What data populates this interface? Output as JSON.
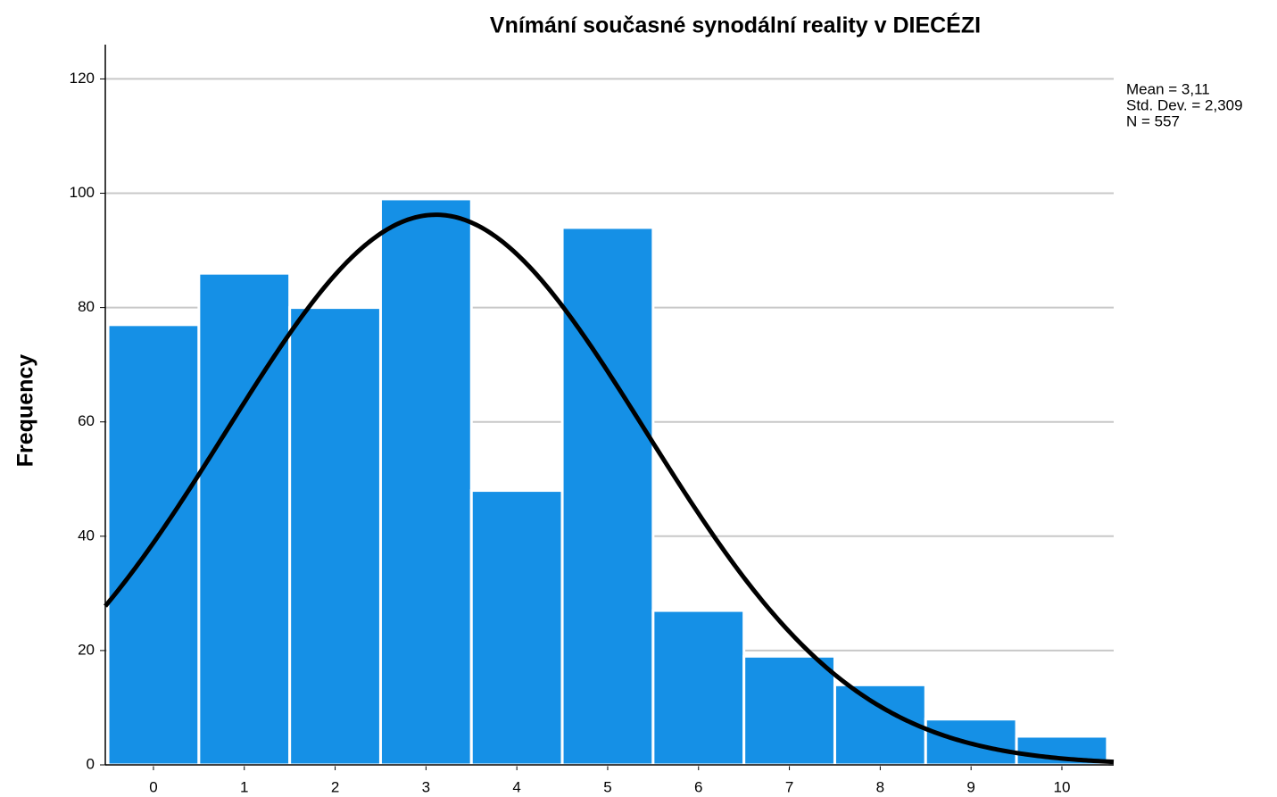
{
  "chart_data": {
    "type": "histogram",
    "title": "Vnímání současné synodální reality v DIECÉZI",
    "y_label": "Frequency",
    "bins": [
      -0.5,
      0.5,
      1.5,
      2.5,
      3.5,
      4.5,
      5.5,
      6.5,
      7.5,
      8.5,
      9.5,
      10.5
    ],
    "values": [
      77,
      86,
      80,
      99,
      48,
      94,
      27,
      19,
      14,
      8,
      5
    ],
    "color": "#1590e6",
    "xlim": [
      -0.53,
      10.57
    ],
    "xticks": [
      0,
      1,
      2,
      3,
      4,
      5,
      6,
      7,
      8,
      9,
      10
    ],
    "ylim": [
      0,
      126
    ],
    "yticks": [
      0,
      20,
      40,
      60,
      80,
      100,
      120
    ],
    "grid": true,
    "normal_curve": true,
    "stats": [
      {
        "value": 3.11,
        "label": "Mean = 3,11"
      },
      {
        "value": 2.309,
        "label": "Std. Dev. = 2,309"
      },
      {
        "value": 557,
        "label": "N = 557"
      }
    ]
  }
}
